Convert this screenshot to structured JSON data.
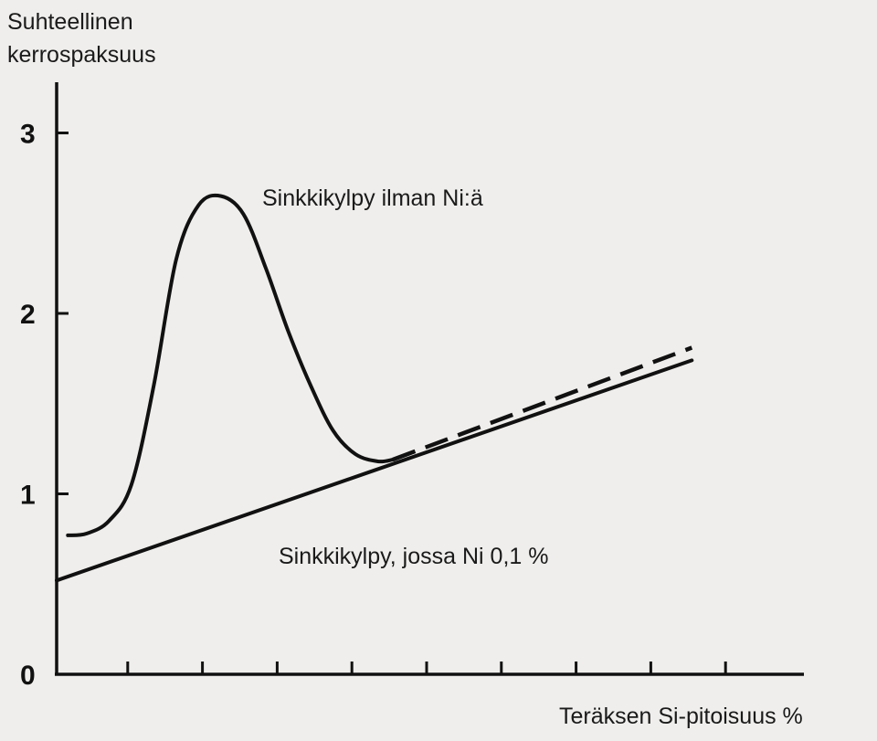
{
  "chart_data": {
    "type": "line",
    "title": "",
    "ylabel_lines": [
      "Suhteellinen",
      "kerrospaksuus"
    ],
    "xlabel": "Teräksen Si-pitoisuus %",
    "ylim": [
      0,
      3.3
    ],
    "xlim": [
      0,
      10
    ],
    "yticks": [
      0,
      1,
      2,
      3
    ],
    "ytick_labels": [
      "0",
      "1",
      "2",
      "3"
    ],
    "xticks": [
      1,
      2,
      3,
      4,
      5,
      6,
      7,
      8,
      9
    ],
    "series": [
      {
        "name": "Sinkkikylpy ilman Ni:ä",
        "style": "solid-then-dashed",
        "color": "#111111",
        "points": [
          [
            0.15,
            0.77
          ],
          [
            0.4,
            0.78
          ],
          [
            0.7,
            0.85
          ],
          [
            1.0,
            1.05
          ],
          [
            1.3,
            1.6
          ],
          [
            1.6,
            2.3
          ],
          [
            1.9,
            2.6
          ],
          [
            2.2,
            2.65
          ],
          [
            2.5,
            2.55
          ],
          [
            2.8,
            2.25
          ],
          [
            3.1,
            1.9
          ],
          [
            3.4,
            1.6
          ],
          [
            3.7,
            1.35
          ],
          [
            4.0,
            1.22
          ],
          [
            4.3,
            1.18
          ],
          [
            4.5,
            1.19
          ]
        ],
        "dashed_points": [
          [
            4.5,
            1.19
          ],
          [
            8.5,
            1.81
          ]
        ]
      },
      {
        "name": "Sinkkikylpy, jossa Ni 0,1 %",
        "style": "solid",
        "color": "#111111",
        "points": [
          [
            0,
            0.52
          ],
          [
            8.5,
            1.74
          ]
        ]
      }
    ],
    "grid": false,
    "legend": "none"
  }
}
